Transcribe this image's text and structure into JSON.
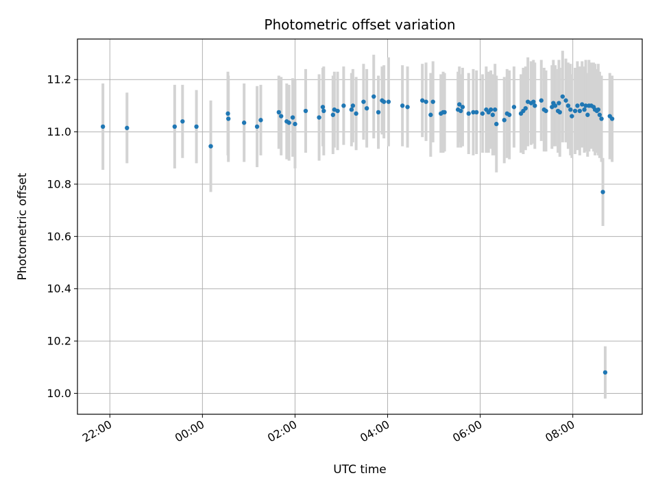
{
  "chart_data": {
    "type": "scatter",
    "title": "Photometric offset variation",
    "xlabel": "UTC time",
    "ylabel": "Photometric offset",
    "xlim_hours": [
      -2.7,
      9.5
    ],
    "ylim": [
      9.92,
      11.355
    ],
    "grid": true,
    "x_ticks": [
      {
        "hours": -2,
        "label": "22:00"
      },
      {
        "hours": 0,
        "label": "00:00"
      },
      {
        "hours": 2,
        "label": "02:00"
      },
      {
        "hours": 4,
        "label": "04:00"
      },
      {
        "hours": 6,
        "label": "06:00"
      },
      {
        "hours": 8,
        "label": "08:00"
      }
    ],
    "y_ticks": [
      {
        "value": 10.0,
        "label": "10.0"
      },
      {
        "value": 10.2,
        "label": "10.2"
      },
      {
        "value": 10.4,
        "label": "10.4"
      },
      {
        "value": 10.6,
        "label": "10.6"
      },
      {
        "value": 10.8,
        "label": "10.8"
      },
      {
        "value": 11.0,
        "label": "11.0"
      },
      {
        "value": 11.2,
        "label": "11.2"
      }
    ],
    "colors": {
      "point": "#1f77b4",
      "errorbar": "#d3d3d3",
      "grid": "#b0b0b0"
    },
    "series": [
      {
        "x_hours": [
          -2.15,
          -1.63,
          -0.6,
          -0.43,
          -0.13,
          0.18,
          0.55,
          0.56,
          0.9,
          1.18,
          1.26,
          1.65,
          1.7,
          1.82,
          1.87,
          1.95,
          2.0,
          2.23,
          2.52,
          2.6,
          2.62,
          2.82,
          2.85,
          2.92,
          3.05,
          3.22,
          3.25,
          3.32,
          3.48,
          3.55,
          3.7,
          3.8,
          3.88,
          3.92,
          4.02,
          4.32,
          4.43,
          4.75,
          4.83,
          4.93,
          4.98,
          5.15,
          5.2,
          5.23,
          5.52,
          5.55,
          5.58,
          5.62,
          5.75,
          5.85,
          5.92,
          6.05,
          6.13,
          6.18,
          6.23,
          6.27,
          6.32,
          6.35,
          6.52,
          6.58,
          6.63,
          6.73,
          6.88,
          6.93,
          6.98,
          7.03,
          7.1,
          7.15,
          7.18,
          7.32,
          7.38,
          7.42,
          7.55,
          7.58,
          7.62,
          7.68,
          7.7,
          7.72,
          7.78,
          7.85,
          7.9,
          7.95,
          7.98,
          8.05,
          8.1,
          8.15,
          8.2,
          8.25,
          8.28,
          8.32,
          8.35,
          8.4,
          8.45,
          8.48,
          8.52,
          8.55,
          8.58,
          8.62,
          8.65,
          8.7,
          8.8,
          8.85
        ],
        "y": [
          11.02,
          11.015,
          11.02,
          11.04,
          11.02,
          10.945,
          11.07,
          11.05,
          11.035,
          11.02,
          11.045,
          11.075,
          11.06,
          11.04,
          11.035,
          11.055,
          11.03,
          11.08,
          11.055,
          11.095,
          11.08,
          11.065,
          11.085,
          11.08,
          11.1,
          11.085,
          11.1,
          11.07,
          11.115,
          11.09,
          11.135,
          11.075,
          11.12,
          11.115,
          11.115,
          11.1,
          11.095,
          11.12,
          11.115,
          11.065,
          11.115,
          11.07,
          11.075,
          11.075,
          11.085,
          11.105,
          11.08,
          11.095,
          11.07,
          11.075,
          11.075,
          11.07,
          11.085,
          11.075,
          11.085,
          11.065,
          11.085,
          11.03,
          11.045,
          11.07,
          11.065,
          11.095,
          11.07,
          11.08,
          11.09,
          11.115,
          11.11,
          11.115,
          11.1,
          11.12,
          11.085,
          11.08,
          11.095,
          11.11,
          11.1,
          11.08,
          11.11,
          11.075,
          11.135,
          11.12,
          11.1,
          11.085,
          11.06,
          11.08,
          11.1,
          11.08,
          11.105,
          11.085,
          11.1,
          11.065,
          11.1,
          11.1,
          11.095,
          11.085,
          11.08,
          11.085,
          11.065,
          11.05,
          10.77,
          10.08,
          11.06,
          11.05
        ],
        "yerr": [
          0.165,
          0.135,
          0.16,
          0.14,
          0.14,
          0.175,
          0.16,
          0.165,
          0.15,
          0.155,
          0.135,
          0.14,
          0.15,
          0.145,
          0.145,
          0.15,
          0.17,
          0.16,
          0.165,
          0.15,
          0.17,
          0.15,
          0.145,
          0.15,
          0.15,
          0.14,
          0.14,
          0.14,
          0.145,
          0.15,
          0.16,
          0.14,
          0.13,
          0.14,
          0.17,
          0.155,
          0.155,
          0.14,
          0.15,
          0.16,
          0.155,
          0.15,
          0.155,
          0.15,
          0.145,
          0.145,
          0.14,
          0.15,
          0.155,
          0.165,
          0.16,
          0.15,
          0.165,
          0.155,
          0.15,
          0.155,
          0.175,
          0.185,
          0.165,
          0.17,
          0.17,
          0.155,
          0.15,
          0.165,
          0.16,
          0.17,
          0.16,
          0.16,
          0.165,
          0.155,
          0.16,
          0.155,
          0.16,
          0.165,
          0.155,
          0.16,
          0.165,
          0.17,
          0.175,
          0.16,
          0.165,
          0.175,
          0.16,
          0.165,
          0.17,
          0.17,
          0.165,
          0.165,
          0.175,
          0.16,
          0.175,
          0.165,
          0.17,
          0.175,
          0.16,
          0.175,
          0.165,
          0.165,
          0.13,
          0.1,
          0.165,
          0.165
        ]
      }
    ]
  }
}
